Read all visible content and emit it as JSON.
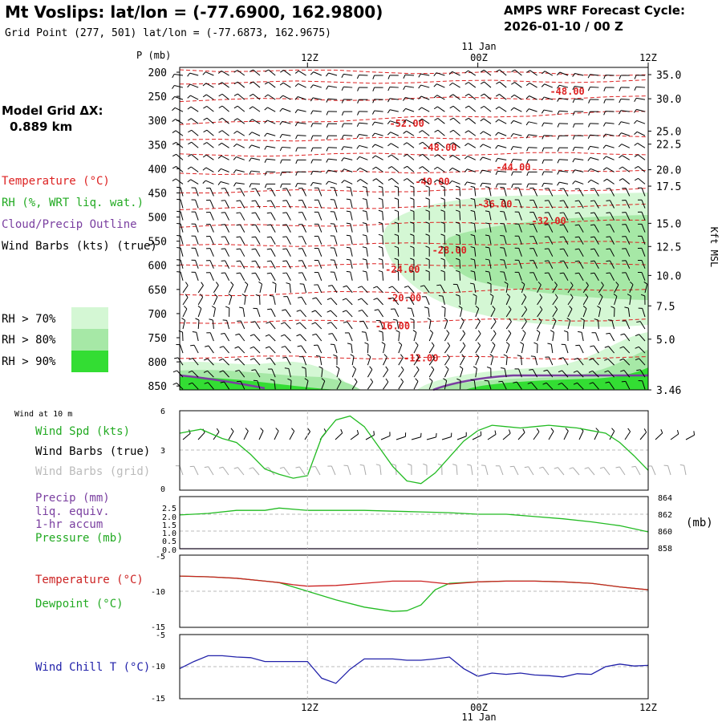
{
  "header": {
    "station_title": "Mt Voslips:  lat/lon = (-77.6900, 162.9800)",
    "grid_point": "Grid Point (277, 501) lat/lon = (-77.6873, 162.9675)",
    "cycle_title": "AMPS WRF Forecast Cycle:",
    "cycle_time": "2026-01-10 / 00  Z",
    "model_grid_label": "Model Grid ΔX:",
    "model_grid_value": "0.889 km"
  },
  "time_axis": {
    "top_date_label": "11 Jan",
    "bottom_date_label": "11 Jan",
    "ticks": [
      "12Z",
      "00Z",
      "12Z"
    ],
    "tick_hours": [
      12,
      24,
      36
    ],
    "start_hour": 3,
    "end_hour": 36
  },
  "legend": {
    "temperature": "Temperature (°C)",
    "rh": "RH (%, WRT liq. wat.)",
    "cloud": "Cloud/Precip Outline",
    "wind_barbs": "Wind Barbs (kts) (true)",
    "rh70": "RH > 70%",
    "rh80": "RH > 80%",
    "rh90": "RH > 90%",
    "colors": {
      "temperature": "#dd2222",
      "rh": "#22aa22",
      "cloud": "#7a3fa0",
      "wind": "#000000",
      "rh70": "#d4f7d4",
      "rh80": "#a6e8a6",
      "rh90": "#33dd33"
    }
  },
  "chart_data": [
    {
      "type": "contour",
      "title": "Pressure-time cross section",
      "ylabel": "P (mb)",
      "pressure_levels": [
        200,
        250,
        300,
        350,
        400,
        450,
        500,
        550,
        600,
        650,
        700,
        750,
        800,
        850
      ],
      "ylim": [
        190,
        858
      ],
      "right_axis_label": "Kft MSL",
      "right_axis": [
        {
          "p": 205,
          "label": "35.0"
        },
        {
          "p": 255,
          "label": "30.0"
        },
        {
          "p": 322,
          "label": "25.0"
        },
        {
          "p": 349,
          "label": "22.5"
        },
        {
          "p": 402,
          "label": "20.0"
        },
        {
          "p": 436,
          "label": "17.5"
        },
        {
          "p": 513,
          "label": "15.0"
        },
        {
          "p": 561,
          "label": "12.5"
        },
        {
          "p": 621,
          "label": "10.0"
        },
        {
          "p": 684,
          "label": "7.5"
        },
        {
          "p": 753,
          "label": "5.0"
        },
        {
          "p": 858,
          "label": "3.46"
        }
      ],
      "isotherm_labels": [
        {
          "label": "-48.00",
          "hour": 30.3,
          "p": 240
        },
        {
          "label": "-52.00",
          "hour": 19.0,
          "p": 306
        },
        {
          "label": "-48.00",
          "hour": 21.3,
          "p": 356
        },
        {
          "label": "-44.00",
          "hour": 26.5,
          "p": 397
        },
        {
          "label": "-40.00",
          "hour": 20.8,
          "p": 427
        },
        {
          "label": "-36.00",
          "hour": 25.2,
          "p": 473
        },
        {
          "label": "-32.00",
          "hour": 29.0,
          "p": 508
        },
        {
          "label": "-28.00",
          "hour": 22.0,
          "p": 569
        },
        {
          "label": "-24.00",
          "hour": 18.7,
          "p": 609
        },
        {
          "label": "-20.00",
          "hour": 18.8,
          "p": 668
        },
        {
          "label": "-16.00",
          "hour": 18.0,
          "p": 726
        },
        {
          "label": "-12.00",
          "hour": 20.0,
          "p": 792
        }
      ]
    },
    {
      "type": "line",
      "title": "Wind at 10 m",
      "series": [
        {
          "name": "Wind Spd (kts)",
          "color": "#22bb22",
          "x": [
            3,
            4.5,
            6,
            7,
            8,
            9,
            10,
            11,
            12,
            13,
            14,
            15,
            16,
            17,
            18,
            19,
            20,
            21,
            22,
            23,
            24,
            25,
            26,
            27,
            28,
            29,
            30,
            31,
            32,
            33,
            34,
            35,
            36
          ],
          "values": [
            4.3,
            4.6,
            3.9,
            3.6,
            2.7,
            1.6,
            1.2,
            0.9,
            1.1,
            4.0,
            5.3,
            5.6,
            4.8,
            3.3,
            1.8,
            0.7,
            0.5,
            1.3,
            2.5,
            3.7,
            4.5,
            4.9,
            4.8,
            4.7,
            4.8,
            4.9,
            4.8,
            4.7,
            4.5,
            4.3,
            3.6,
            2.6,
            1.5
          ]
        }
      ],
      "labels": {
        "wind_spd": "Wind Spd (kts)",
        "barbs_true": "Wind Barbs (true)",
        "barbs_grid": "Wind Barbs (grid)"
      },
      "ylim": [
        0,
        6
      ],
      "yticks": [
        "6",
        "3",
        "0"
      ]
    },
    {
      "type": "line",
      "title": "Precip / Pressure",
      "series": [
        {
          "name": "Pressure (mb)",
          "color": "#22bb22",
          "x": [
            3,
            5,
            7,
            9,
            10,
            12,
            14,
            16,
            18,
            20,
            22,
            24,
            26,
            28,
            30,
            32,
            34,
            36
          ],
          "values": [
            862.0,
            862.2,
            862.6,
            862.6,
            862.9,
            862.6,
            862.6,
            862.6,
            862.5,
            862.4,
            862.3,
            862.1,
            862.1,
            861.8,
            861.5,
            861.1,
            860.6,
            859.8
          ]
        },
        {
          "name": "Precip (mm)",
          "color": "#7a3fa0",
          "x": [
            3,
            36
          ],
          "values": [
            0.0,
            0.0
          ]
        }
      ],
      "labels": {
        "precip": "Precip (mm)",
        "liq": "liq. equiv.",
        "accum": "1-hr accum",
        "pressure": "Pressure (mb)",
        "unit": "(mb)"
      },
      "left_ticks": [
        "2.5",
        "2.0",
        "1.5",
        "1.0",
        "0.5",
        "0.0"
      ],
      "right_ticks": [
        "864",
        "862",
        "860",
        "858"
      ],
      "ylim_precip": [
        0,
        2.5
      ],
      "ylim_pressure": [
        857.6,
        864.4
      ]
    },
    {
      "type": "line",
      "title": "Temperature / Dewpoint",
      "series": [
        {
          "name": "Temperature (°C)",
          "color": "#cc2222",
          "x": [
            3,
            5,
            7,
            9,
            10,
            11,
            12,
            14,
            16,
            18,
            20,
            22,
            24,
            26,
            28,
            30,
            32,
            34,
            36
          ],
          "values": [
            -7.9,
            -8.0,
            -8.2,
            -8.6,
            -8.8,
            -9.1,
            -9.3,
            -9.2,
            -8.9,
            -8.6,
            -8.6,
            -9.0,
            -8.7,
            -8.6,
            -8.6,
            -8.7,
            -8.9,
            -9.4,
            -9.8
          ]
        },
        {
          "name": "Dewpoint (°C)",
          "color": "#22bb22",
          "x": [
            3,
            5,
            7,
            9,
            10,
            11,
            12,
            14,
            16,
            18,
            19,
            20,
            21,
            22,
            24,
            26,
            28,
            30,
            32,
            34,
            36
          ],
          "values": [
            -7.9,
            -8.0,
            -8.2,
            -8.6,
            -8.8,
            -9.4,
            -10.0,
            -11.2,
            -12.2,
            -12.8,
            -12.7,
            -11.9,
            -9.8,
            -8.9,
            -8.7,
            -8.6,
            -8.6,
            -8.7,
            -8.9,
            -9.4,
            -9.8
          ]
        }
      ],
      "labels": {
        "temperature": "Temperature (°C)",
        "dewpoint": "Dewpoint (°C)"
      },
      "ylim": [
        -15,
        -5
      ],
      "yticks": [
        "-5",
        "-10",
        "-15"
      ]
    },
    {
      "type": "line",
      "title": "Wind Chill",
      "series": [
        {
          "name": "Wind Chill T (°C)",
          "color": "#2222aa",
          "x": [
            3,
            4,
            5,
            6,
            7,
            8,
            9,
            10,
            11,
            12,
            13,
            14,
            15,
            16,
            17,
            18,
            19,
            20,
            21,
            22,
            23,
            24,
            25,
            26,
            27,
            28,
            29,
            30,
            31,
            32,
            33,
            34,
            35,
            36
          ],
          "values": [
            -10.3,
            -9.2,
            -8.3,
            -8.3,
            -8.5,
            -8.6,
            -9.2,
            -9.2,
            -9.2,
            -9.2,
            -11.8,
            -12.6,
            -10.4,
            -8.8,
            -8.8,
            -8.8,
            -9.0,
            -9.0,
            -8.8,
            -8.5,
            -10.3,
            -11.5,
            -11.0,
            -11.2,
            -11.0,
            -11.3,
            -11.4,
            -11.6,
            -11.1,
            -11.2,
            -10.0,
            -9.6,
            -9.9,
            -9.8
          ]
        }
      ],
      "labels": {
        "windchill": "Wind Chill T (°C)"
      },
      "ylim": [
        -15,
        -5
      ],
      "yticks": [
        "-5",
        "-10",
        "-15"
      ]
    }
  ],
  "panel_labels": {
    "wind10m": "Wind at 10 m"
  }
}
